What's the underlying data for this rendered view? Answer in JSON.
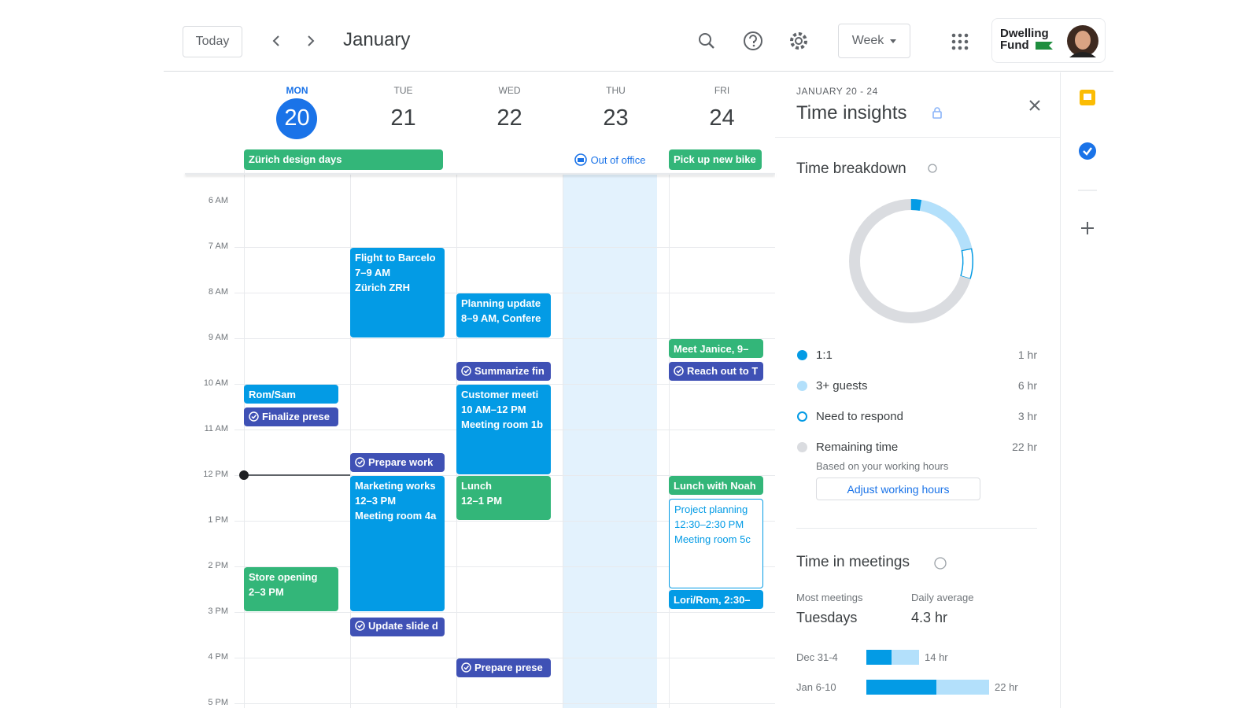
{
  "header": {
    "today": "Today",
    "month": "January",
    "view": "Week",
    "brand": [
      "Dwelling",
      "Fund"
    ]
  },
  "days": [
    {
      "dow": "MON",
      "date": "20"
    },
    {
      "dow": "TUE",
      "date": "21"
    },
    {
      "dow": "WED",
      "date": "22"
    },
    {
      "dow": "THU",
      "date": "23"
    },
    {
      "dow": "FRI",
      "date": "24"
    }
  ],
  "all_day": [
    "Zürich design days",
    "Out of office",
    "Pick up new bike"
  ],
  "hours": [
    "6 AM",
    "7 AM",
    "8 AM",
    "9 AM",
    "10 AM",
    "11 AM",
    "12 PM",
    "1 PM",
    "2 PM",
    "3 PM",
    "4 PM",
    "5 PM"
  ],
  "events": [
    {
      "title": "Rom/Sam"
    },
    {
      "title": "Finalize prese"
    },
    {
      "title": "Store opening",
      "time": "2–3 PM"
    },
    {
      "title": "Flight to Barcelo",
      "time": "7–9 AM",
      "location": "Zürich ZRH"
    },
    {
      "title": "Prepare work"
    },
    {
      "title": "Marketing works",
      "time": "12–3 PM",
      "location": "Meeting room 4a"
    },
    {
      "title": "Update slide d"
    },
    {
      "title": "Planning update",
      "time": "8–9 AM, Confere"
    },
    {
      "title": "Summarize fin"
    },
    {
      "title": "Customer meeti",
      "time": "10 AM–12 PM",
      "location": "Meeting room 1b"
    },
    {
      "title": "Lunch",
      "time": "12–1 PM"
    },
    {
      "title": "Prepare prese"
    },
    {
      "title": "Meet Janice, 9–"
    },
    {
      "title": "Reach out to T"
    },
    {
      "title": "Lunch with Noah"
    },
    {
      "title": "Project planning",
      "time": "12:30–2:30 PM",
      "location": "Meeting room 5c"
    },
    {
      "title": "Lori/Rom, 2:30–"
    }
  ],
  "panel": {
    "range": "JANUARY 20 - 24",
    "title": "Time insights",
    "breakdown": {
      "title": "Time breakdown",
      "items": [
        {
          "label": "1:1",
          "value": "1 hr"
        },
        {
          "label": "3+ guests",
          "value": "6 hr"
        },
        {
          "label": "Need to respond",
          "value": "3 hr"
        },
        {
          "label": "Remaining time",
          "value": "22 hr"
        }
      ],
      "note": "Based on your working hours",
      "button": "Adjust working hours"
    },
    "meetings": {
      "title": "Time in meetings",
      "most_label": "Most meetings",
      "most_value": "Tuesdays",
      "avg_label": "Daily average",
      "avg_value": "4.3 hr",
      "weeks": [
        {
          "label": "Dec 31-4",
          "value": "14 hr"
        },
        {
          "label": "Jan 6-10",
          "value": "22 hr"
        }
      ]
    }
  }
}
